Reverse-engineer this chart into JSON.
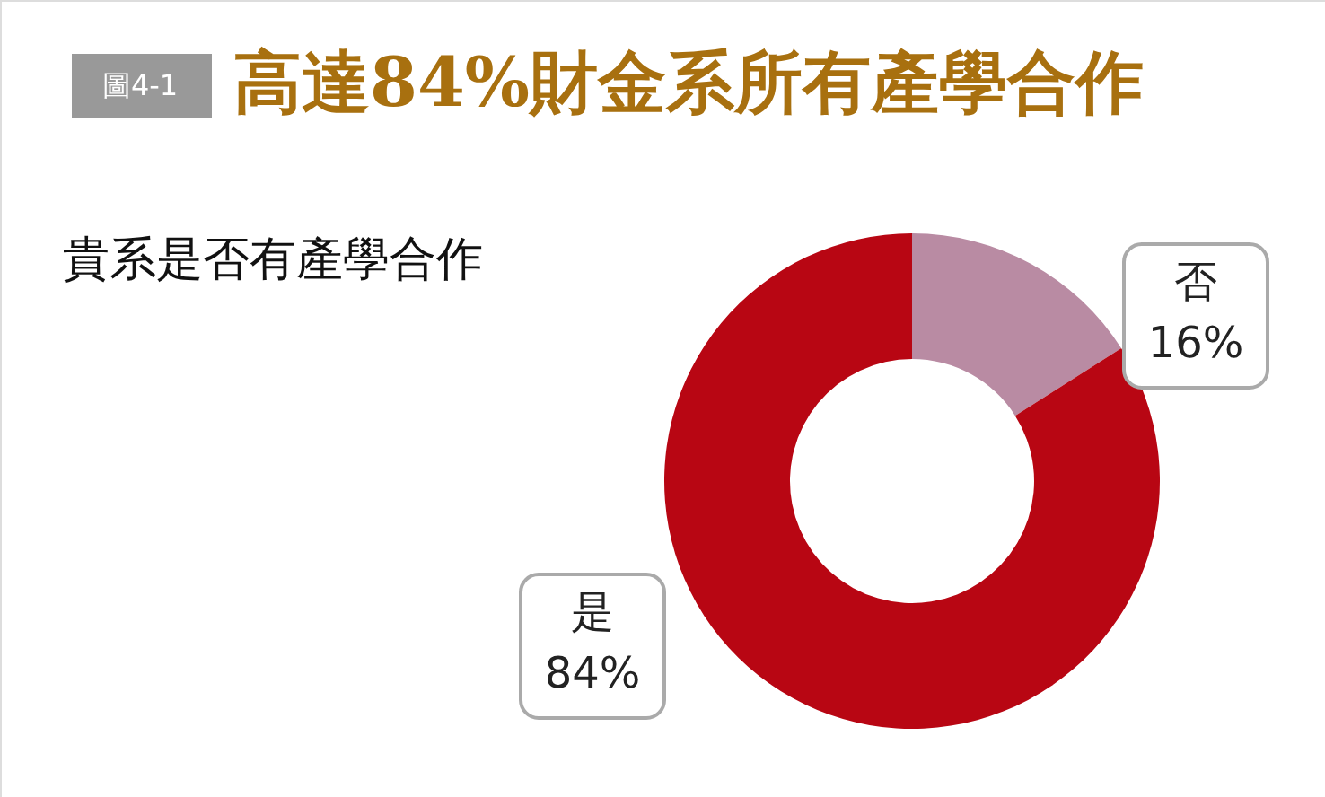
{
  "chart_data": {
    "type": "donut",
    "title": "高達84%財金系所有產學合作",
    "subtitle": "貴系是否有產學合作",
    "annotations": [
      "圖4-1"
    ],
    "categories": [
      "否",
      "是"
    ],
    "values": [
      16,
      84
    ],
    "colors": [
      "#b98ba3",
      "#b80613"
    ],
    "value_labels": [
      "16%",
      "84%"
    ]
  }
}
